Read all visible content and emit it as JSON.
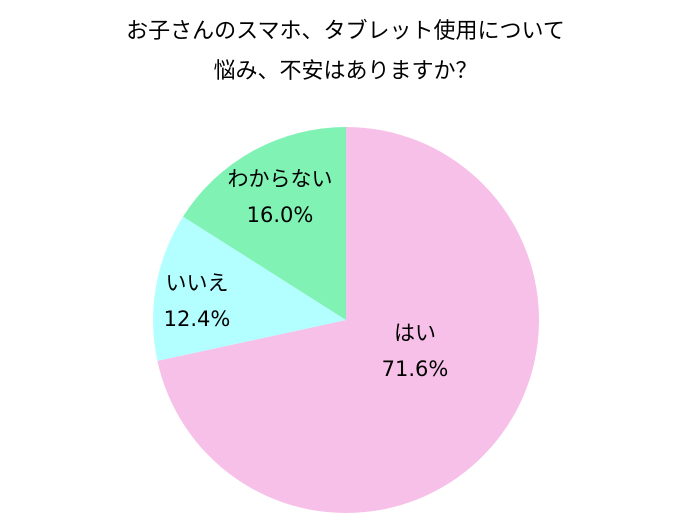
{
  "title_line1": "お子さんのスマホ、タブレット使用について",
  "title_line2": "悩み、不安はありますか？",
  "chart_data": {
    "type": "pie",
    "title": "お子さんのスマホ、タブレット使用について悩み、不安はありますか？",
    "slices": [
      {
        "label": "はい",
        "value": 71.6,
        "value_label": "71.6%",
        "color": "#F7C0E8"
      },
      {
        "label": "いいえ",
        "value": 12.4,
        "value_label": "12.4%",
        "color": "#B3FFFF"
      },
      {
        "label": "わからない",
        "value": 16.0,
        "value_label": "16.0%",
        "color": "#80F2B4"
      }
    ],
    "start_angle": "12 o'clock",
    "direction": "clockwise",
    "legend": "none"
  }
}
